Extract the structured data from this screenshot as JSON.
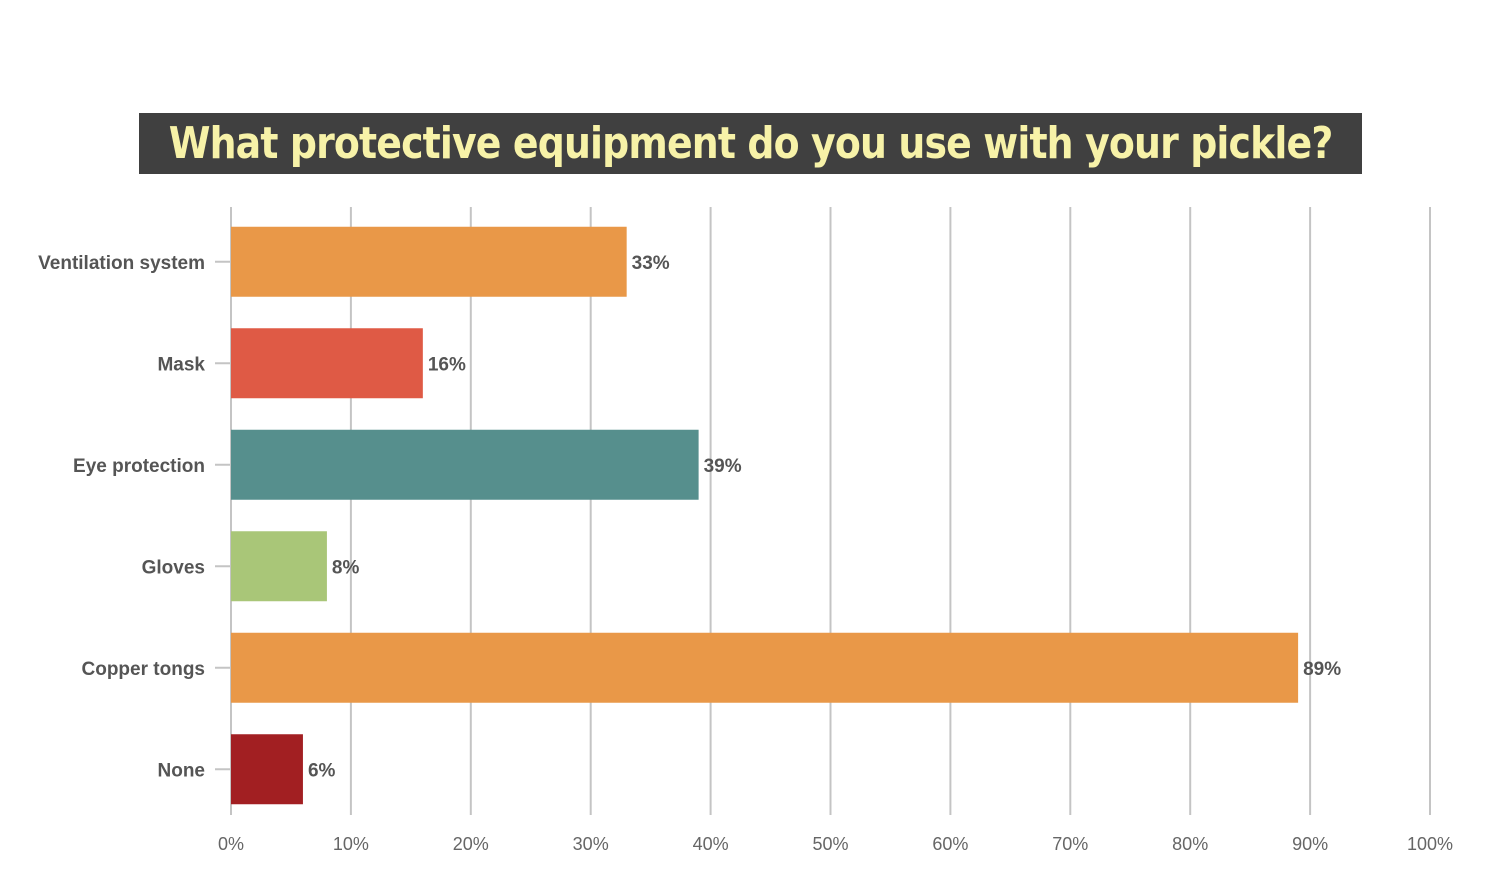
{
  "chart_data": {
    "type": "bar",
    "orientation": "horizontal",
    "title": "What protective equipment do you use with your pickle?",
    "categories": [
      "Ventilation system",
      "Mask",
      "Eye protection",
      "Gloves",
      "Copper tongs",
      "None"
    ],
    "values": [
      33,
      16,
      39,
      8,
      89,
      6
    ],
    "value_labels": [
      "33%",
      "16%",
      "39%",
      "8%",
      "89%",
      "6%"
    ],
    "colors": [
      "#e99848",
      "#df5a45",
      "#568f8d",
      "#a9c678",
      "#e99848",
      "#a21f22"
    ],
    "xlim": [
      0,
      100
    ],
    "x_ticks": [
      0,
      10,
      20,
      30,
      40,
      50,
      60,
      70,
      80,
      90,
      100
    ],
    "x_tick_labels": [
      "0%",
      "10%",
      "20%",
      "30%",
      "40%",
      "50%",
      "60%",
      "70%",
      "80%",
      "90%",
      "100%"
    ],
    "xlabel": "",
    "ylabel": "",
    "grid": "vertical",
    "legend": "none",
    "title_background": "#404040",
    "title_color": "#f7f2a8"
  }
}
